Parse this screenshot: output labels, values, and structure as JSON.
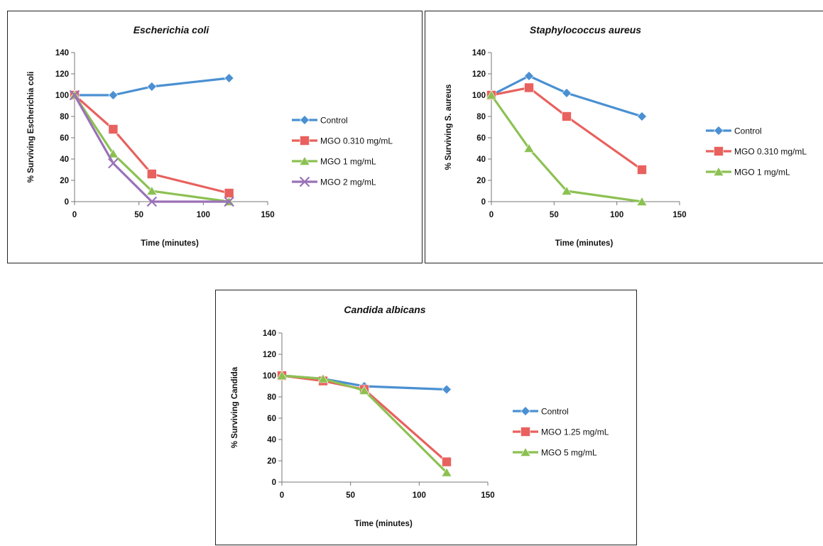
{
  "chart_data": [
    {
      "type": "line",
      "title": "Escherichia coli",
      "xlabel": "Time (minutes)",
      "ylabel": "% Surviving Escherichia coli",
      "xlim": [
        0,
        150
      ],
      "ylim": [
        0,
        140
      ],
      "xticks": [
        0,
        50,
        100,
        150
      ],
      "yticks": [
        0,
        20,
        40,
        60,
        80,
        100,
        120,
        140
      ],
      "grid": false,
      "legend": "right",
      "series": [
        {
          "name": "Control",
          "color": "#4A90D2",
          "marker": "diamond",
          "x": [
            0,
            30,
            60,
            120
          ],
          "y": [
            100,
            100,
            108,
            116
          ]
        },
        {
          "name": "MGO 0.310 mg/mL",
          "color": "#E8615E",
          "marker": "square",
          "x": [
            0,
            30,
            60,
            120
          ],
          "y": [
            100,
            68,
            26,
            8
          ]
        },
        {
          "name": "MGO 1 mg/mL",
          "color": "#8CC152",
          "marker": "triangle",
          "x": [
            0,
            30,
            60,
            120
          ],
          "y": [
            100,
            45,
            10,
            0
          ]
        },
        {
          "name": "MGO 2 mg/mL",
          "color": "#9A72B8",
          "marker": "x",
          "x": [
            0,
            30,
            60,
            120
          ],
          "y": [
            100,
            36,
            0,
            0
          ]
        }
      ]
    },
    {
      "type": "line",
      "title": "Staphylococcus aureus",
      "xlabel": "Time (minutes)",
      "ylabel": "% Surviving S. aureus",
      "xlim": [
        0,
        150
      ],
      "ylim": [
        0,
        140
      ],
      "xticks": [
        0,
        50,
        100,
        150
      ],
      "yticks": [
        0,
        20,
        40,
        60,
        80,
        100,
        120,
        140
      ],
      "grid": false,
      "legend": "right",
      "series": [
        {
          "name": "Control",
          "color": "#4A90D2",
          "marker": "diamond",
          "x": [
            0,
            30,
            60,
            120
          ],
          "y": [
            100,
            118,
            102,
            80
          ]
        },
        {
          "name": "MGO 0.310 mg/mL",
          "color": "#E8615E",
          "marker": "square",
          "x": [
            0,
            30,
            60,
            120
          ],
          "y": [
            100,
            107,
            80,
            30
          ]
        },
        {
          "name": "MGO 1 mg/mL",
          "color": "#8CC152",
          "marker": "triangle",
          "x": [
            0,
            30,
            60,
            120
          ],
          "y": [
            100,
            50,
            10,
            0
          ]
        }
      ]
    },
    {
      "type": "line",
      "title": "Candida albicans",
      "xlabel": "Time (minutes)",
      "ylabel": "% Surviving Candida",
      "xlim": [
        0,
        150
      ],
      "ylim": [
        0,
        140
      ],
      "xticks": [
        0,
        50,
        100,
        150
      ],
      "yticks": [
        0,
        20,
        40,
        60,
        80,
        100,
        120,
        140
      ],
      "grid": false,
      "legend": "right",
      "series": [
        {
          "name": "Control",
          "color": "#4A90D2",
          "marker": "diamond",
          "x": [
            0,
            30,
            60,
            120
          ],
          "y": [
            100,
            97,
            90,
            87
          ]
        },
        {
          "name": "MGO 1.25 mg/mL",
          "color": "#E8615E",
          "marker": "square",
          "x": [
            0,
            30,
            60,
            120
          ],
          "y": [
            100,
            95,
            87,
            19
          ]
        },
        {
          "name": "MGO 5 mg/mL",
          "color": "#8CC152",
          "marker": "triangle",
          "x": [
            0,
            30,
            60,
            120
          ],
          "y": [
            100,
            97,
            86,
            9
          ]
        }
      ]
    }
  ]
}
